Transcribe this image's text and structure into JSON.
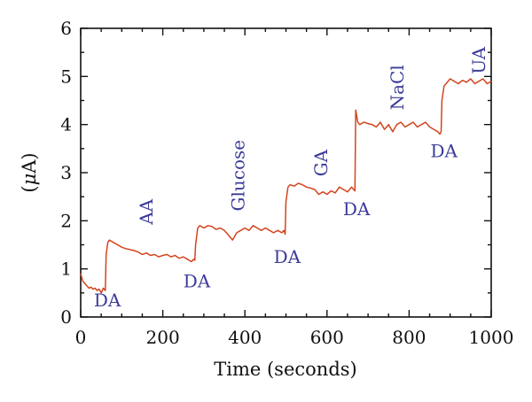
{
  "chart_data": {
    "type": "line",
    "title": "",
    "xlabel": "Time (seconds)",
    "ylabel_prefix": "(",
    "ylabel_symbol": "μ",
    "ylabel_suffix": "A)",
    "xlim": [
      0,
      1000
    ],
    "ylim": [
      0,
      6
    ],
    "xticks": [
      0,
      200,
      400,
      600,
      800,
      1000
    ],
    "yticks": [
      0,
      1,
      2,
      3,
      4,
      5,
      6
    ],
    "grid": false,
    "legend": "none",
    "line_color": "#d2451e",
    "annotation_color": "#3b3b9a",
    "series": [
      {
        "x": [
          0,
          5,
          10,
          15,
          20,
          25,
          30,
          35,
          40,
          45,
          50,
          55,
          60,
          62,
          66,
          70,
          80,
          90,
          100,
          110,
          120,
          130,
          140,
          150,
          160,
          170,
          180,
          190,
          200,
          210,
          220,
          230,
          240,
          250,
          260,
          270,
          275,
          278,
          280,
          285,
          290,
          300,
          310,
          320,
          330,
          340,
          350,
          360,
          370,
          380,
          390,
          400,
          410,
          420,
          430,
          440,
          450,
          460,
          470,
          480,
          490,
          495,
          498,
          500,
          505,
          510,
          520,
          530,
          540,
          550,
          560,
          570,
          580,
          590,
          600,
          610,
          620,
          630,
          640,
          650,
          660,
          665,
          668,
          670,
          675,
          680,
          690,
          700,
          710,
          720,
          730,
          740,
          750,
          760,
          770,
          780,
          790,
          800,
          810,
          820,
          830,
          840,
          850,
          860,
          870,
          875,
          878,
          880,
          885,
          890,
          900,
          910,
          920,
          930,
          940,
          950,
          960,
          970,
          980,
          990,
          1000
        ],
        "y": [
          0.9,
          0.75,
          0.7,
          0.65,
          0.6,
          0.62,
          0.58,
          0.6,
          0.55,
          0.58,
          0.5,
          0.6,
          0.55,
          1.3,
          1.55,
          1.6,
          1.55,
          1.5,
          1.45,
          1.42,
          1.4,
          1.38,
          1.35,
          1.3,
          1.33,
          1.28,
          1.3,
          1.25,
          1.28,
          1.3,
          1.25,
          1.28,
          1.22,
          1.25,
          1.2,
          1.15,
          1.2,
          1.18,
          1.5,
          1.85,
          1.9,
          1.85,
          1.9,
          1.88,
          1.82,
          1.85,
          1.8,
          1.7,
          1.6,
          1.75,
          1.8,
          1.85,
          1.8,
          1.9,
          1.85,
          1.8,
          1.85,
          1.8,
          1.75,
          1.8,
          1.75,
          1.8,
          1.72,
          2.4,
          2.7,
          2.75,
          2.72,
          2.78,
          2.75,
          2.7,
          2.68,
          2.65,
          2.55,
          2.6,
          2.55,
          2.62,
          2.58,
          2.7,
          2.65,
          2.6,
          2.7,
          2.65,
          2.62,
          4.3,
          4.05,
          4.0,
          4.05,
          4.02,
          4.0,
          3.95,
          4.05,
          3.9,
          4.0,
          3.85,
          4.0,
          4.05,
          3.95,
          4.0,
          4.05,
          3.95,
          4.0,
          4.05,
          3.95,
          3.9,
          3.85,
          3.8,
          3.85,
          4.5,
          4.8,
          4.85,
          4.95,
          4.9,
          4.85,
          4.92,
          4.88,
          4.95,
          4.85,
          4.9,
          4.95,
          4.85,
          4.9
        ]
      }
    ],
    "annotations": [
      {
        "text": "DA",
        "x": 65,
        "y": 0.22,
        "rotate": false
      },
      {
        "text": "AA",
        "x": 175,
        "y": 1.92,
        "rotate": true
      },
      {
        "text": "DA",
        "x": 283,
        "y": 0.62,
        "rotate": false
      },
      {
        "text": "Glucose",
        "x": 398,
        "y": 2.2,
        "rotate": true
      },
      {
        "text": "DA",
        "x": 503,
        "y": 1.12,
        "rotate": false
      },
      {
        "text": "GA",
        "x": 600,
        "y": 2.92,
        "rotate": true
      },
      {
        "text": "DA",
        "x": 672,
        "y": 2.12,
        "rotate": false
      },
      {
        "text": "NaCl",
        "x": 786,
        "y": 4.3,
        "rotate": true
      },
      {
        "text": "DA",
        "x": 885,
        "y": 3.32,
        "rotate": false
      },
      {
        "text": "UA",
        "x": 985,
        "y": 5.05,
        "rotate": true
      }
    ]
  }
}
